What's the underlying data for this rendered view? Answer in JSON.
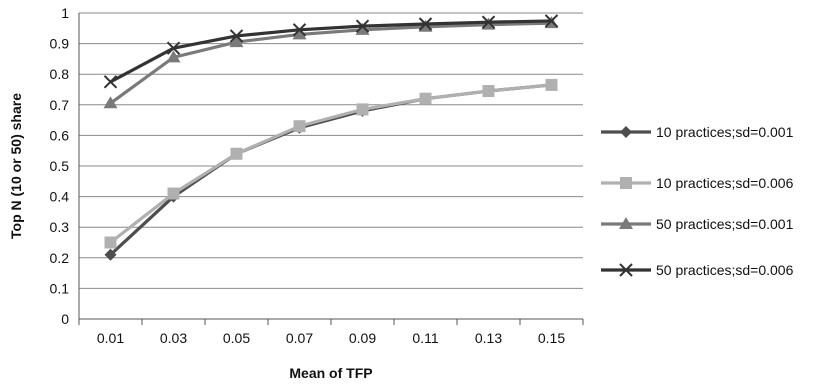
{
  "chart_data": {
    "type": "line",
    "title": "",
    "xlabel": "Mean of TFP",
    "ylabel": "Top N (10 or 50) share",
    "categories": [
      "0.01",
      "0.03",
      "0.05",
      "0.07",
      "0.09",
      "0.11",
      "0.13",
      "0.15"
    ],
    "ylim": [
      0,
      1
    ],
    "yticks": [
      "0",
      "0.1",
      "0.2",
      "0.3",
      "0.4",
      "0.5",
      "0.6",
      "0.7",
      "0.8",
      "0.9",
      "1"
    ],
    "grid": "horizontal",
    "legend_position": "right",
    "series": [
      {
        "name": "10 practices;sd=0.001",
        "marker": "diamond",
        "color": "#4d4d4d",
        "values": [
          0.21,
          0.4,
          0.54,
          0.625,
          0.68,
          0.72,
          0.745,
          0.765
        ]
      },
      {
        "name": "10 practices;sd=0.006",
        "marker": "square",
        "color": "#b0b0b0",
        "values": [
          0.25,
          0.41,
          0.54,
          0.63,
          0.685,
          0.72,
          0.745,
          0.765
        ]
      },
      {
        "name": "50 practices;sd=0.001",
        "marker": "triangle",
        "color": "#7a7a7a",
        "values": [
          0.705,
          0.855,
          0.905,
          0.93,
          0.945,
          0.955,
          0.962,
          0.967
        ]
      },
      {
        "name": "50 practices;sd=0.006",
        "marker": "x",
        "color": "#333333",
        "values": [
          0.775,
          0.885,
          0.925,
          0.945,
          0.957,
          0.964,
          0.97,
          0.974
        ]
      }
    ]
  }
}
